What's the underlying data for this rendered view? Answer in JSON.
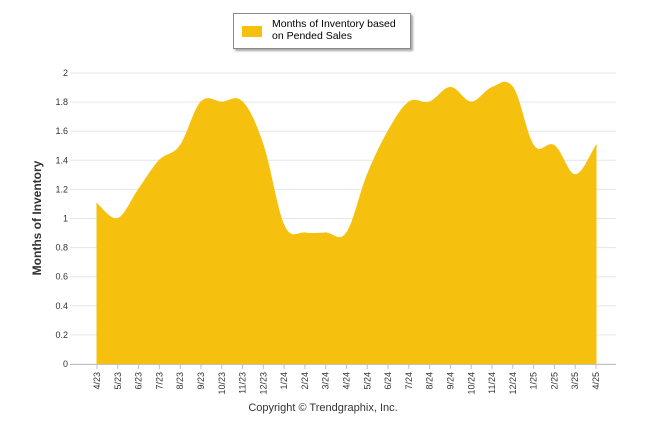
{
  "chart_data": {
    "type": "area",
    "title": "",
    "ylabel": "Months of Inventory",
    "xlabel": "",
    "ylim": [
      0,
      2
    ],
    "yticks": [
      "0",
      "0.2",
      "0.4",
      "0.6",
      "0.8",
      "1",
      "1.2",
      "1.4",
      "1.6",
      "1.8",
      "2"
    ],
    "grid": true,
    "legend_position": "top-center",
    "categories": [
      "4/23",
      "5/23",
      "6/23",
      "7/23",
      "8/23",
      "9/23",
      "10/23",
      "11/23",
      "12/23",
      "1/24",
      "2/24",
      "3/24",
      "4/24",
      "5/24",
      "6/24",
      "7/24",
      "8/24",
      "9/24",
      "10/24",
      "11/24",
      "12/24",
      "1/25",
      "2/25",
      "3/25",
      "4/25"
    ],
    "series": [
      {
        "name": "Months of Inventory based on Pended Sales",
        "color": "#f5c10e",
        "values": [
          1.1,
          1.0,
          1.2,
          1.4,
          1.5,
          1.8,
          1.8,
          1.8,
          1.5,
          0.95,
          0.9,
          0.9,
          0.9,
          1.3,
          1.6,
          1.8,
          1.8,
          1.9,
          1.8,
          1.9,
          1.9,
          1.5,
          1.5,
          1.3,
          1.5
        ]
      }
    ]
  },
  "legend": {
    "label": "Months of Inventory based on Pended Sales"
  },
  "footer": {
    "copyright": "Copyright © Trendgraphix, Inc."
  }
}
